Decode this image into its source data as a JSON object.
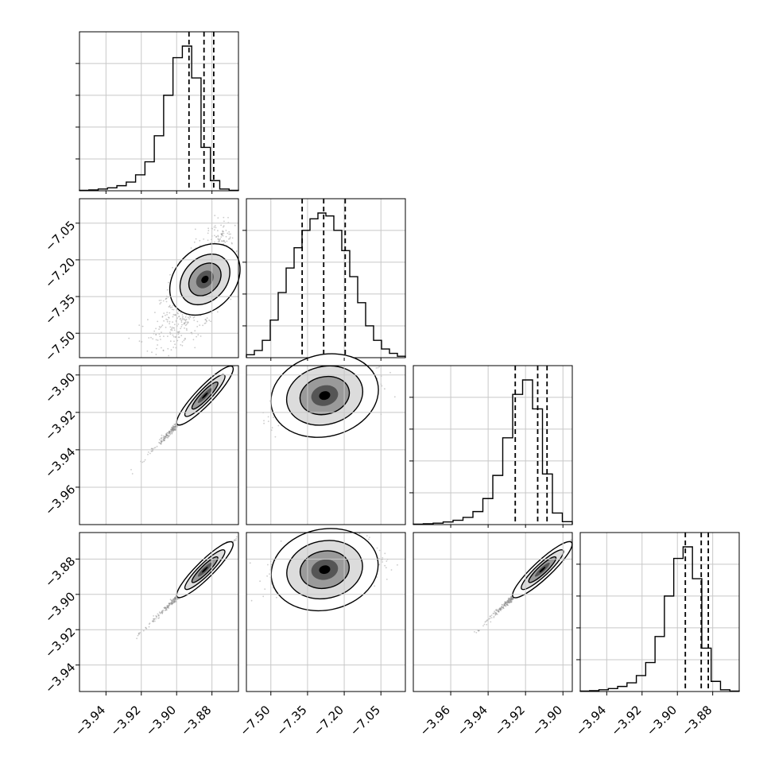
{
  "chart_data": {
    "type": "corner",
    "grid": true,
    "colors": {
      "frame": "#000000",
      "grid": "#c8c8c8",
      "scatter": "#8c8c8c",
      "contour": "#000000",
      "quantile": "#000000"
    },
    "params": [
      {
        "range": [
          -3.955,
          -3.865
        ],
        "ticks": [
          -3.94,
          -3.92,
          -3.9,
          -3.88
        ],
        "tick_labels": [
          "−3.94",
          "−3.92",
          "−3.90",
          "−3.88"
        ],
        "center": -3.884,
        "spread": 0.0065,
        "skew": "left",
        "hist": [
          0.003,
          0.006,
          0.012,
          0.02,
          0.035,
          0.06,
          0.11,
          0.2,
          0.38,
          0.66,
          0.92,
          1.0,
          0.78,
          0.3,
          0.07,
          0.012,
          0.003
        ],
        "quantiles": [
          -3.893,
          -3.8845,
          -3.879
        ]
      },
      {
        "range": [
          -7.6,
          -6.95
        ],
        "ticks": [
          -7.5,
          -7.35,
          -7.2,
          -7.05
        ],
        "tick_labels": [
          "−7.50",
          "−7.35",
          "−7.20",
          "−7.05"
        ],
        "center": -7.28,
        "spread": 0.09,
        "skew": "none",
        "hist": [
          0.02,
          0.05,
          0.12,
          0.26,
          0.45,
          0.62,
          0.76,
          0.88,
          0.96,
          1.0,
          0.98,
          0.88,
          0.74,
          0.56,
          0.38,
          0.22,
          0.12,
          0.06,
          0.03,
          0.01
        ],
        "quantiles": [
          -7.372,
          -7.284,
          -7.196
        ]
      },
      {
        "range": [
          -3.98,
          -3.895
        ],
        "ticks": [
          -3.96,
          -3.94,
          -3.92,
          -3.9
        ],
        "tick_labels": [
          "−3.96",
          "−3.94",
          "−3.92",
          "−3.90"
        ],
        "center": -3.911,
        "spread": 0.0065,
        "skew": "left",
        "hist": [
          0.003,
          0.006,
          0.01,
          0.018,
          0.03,
          0.05,
          0.09,
          0.18,
          0.34,
          0.6,
          0.9,
          1.0,
          0.8,
          0.35,
          0.08,
          0.02
        ],
        "quantiles": [
          -3.9255,
          -3.9135,
          -3.9085
        ]
      },
      {
        "range": [
          -3.955,
          -3.865
        ],
        "ticks": [
          -3.94,
          -3.92,
          -3.9,
          -3.88
        ],
        "tick_labels": [
          "−3.94",
          "−3.92",
          "−3.90",
          "−3.88"
        ],
        "center": -3.886,
        "spread": 0.0065,
        "skew": "left",
        "hist": [
          0.003,
          0.006,
          0.012,
          0.02,
          0.035,
          0.06,
          0.11,
          0.2,
          0.38,
          0.66,
          0.92,
          1.0,
          0.78,
          0.3,
          0.07,
          0.012,
          0.003
        ],
        "quantiles": [
          -3.8955,
          -3.8865,
          -3.8825
        ]
      }
    ],
    "pairs": [
      {
        "row": 1,
        "col": 0,
        "correlation": 0.55
      },
      {
        "row": 2,
        "col": 0,
        "correlation": 0.99
      },
      {
        "row": 2,
        "col": 1,
        "correlation": 0.45
      },
      {
        "row": 3,
        "col": 0,
        "correlation": 0.99
      },
      {
        "row": 3,
        "col": 1,
        "correlation": 0.4
      },
      {
        "row": 3,
        "col": 2,
        "correlation": 0.99
      }
    ]
  }
}
